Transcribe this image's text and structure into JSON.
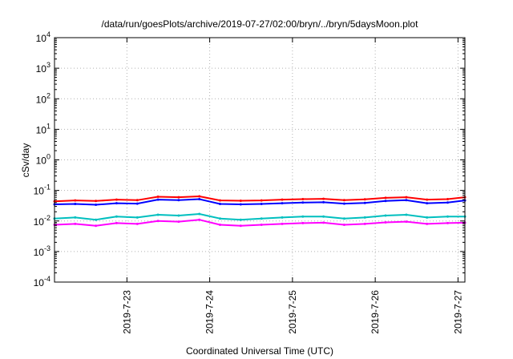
{
  "chart_data": {
    "type": "line",
    "title": "/data/run/goesPlots/archive/2019-07-27/02:00/bryn/../bryn/5daysMoon.plot",
    "xlabel": "Coordinated Universal Time (UTC)",
    "ylabel": "cSv/day",
    "yscale": "log",
    "ylim": [
      0.0001,
      10000
    ],
    "xlim": [
      "2019-07-22T03:00",
      "2019-07-27T02:00"
    ],
    "grid": true,
    "y_ticks": [
      {
        "base": "10",
        "exp": "-4",
        "value": 0.0001
      },
      {
        "base": "10",
        "exp": "-3",
        "value": 0.001
      },
      {
        "base": "10",
        "exp": "-2",
        "value": 0.01
      },
      {
        "base": "10",
        "exp": "-1",
        "value": 0.1
      },
      {
        "base": "10",
        "exp": "0",
        "value": 1
      },
      {
        "base": "10",
        "exp": "1",
        "value": 10
      },
      {
        "base": "10",
        "exp": "2",
        "value": 100
      },
      {
        "base": "10",
        "exp": "3",
        "value": 1000
      },
      {
        "base": "10",
        "exp": "4",
        "value": 10000
      }
    ],
    "x_ticks": [
      {
        "label": "2019-7-23",
        "value": "2019-07-23T00:00"
      },
      {
        "label": "2019-7-24",
        "value": "2019-07-24T00:00"
      },
      {
        "label": "2019-7-25",
        "value": "2019-07-25T00:00"
      },
      {
        "label": "2019-7-26",
        "value": "2019-07-26T00:00"
      },
      {
        "label": "2019-7-27",
        "value": "2019-07-27T00:00"
      }
    ],
    "series": [
      {
        "color": "#ff0000",
        "x": [
          "2019-07-22T03:00",
          "2019-07-22T09:00",
          "2019-07-22T15:00",
          "2019-07-22T21:00",
          "2019-07-23T03:00",
          "2019-07-23T09:00",
          "2019-07-23T15:00",
          "2019-07-23T21:00",
          "2019-07-24T03:00",
          "2019-07-24T09:00",
          "2019-07-24T15:00",
          "2019-07-24T21:00",
          "2019-07-25T03:00",
          "2019-07-25T09:00",
          "2019-07-25T15:00",
          "2019-07-25T21:00",
          "2019-07-26T03:00",
          "2019-07-26T09:00",
          "2019-07-26T15:00",
          "2019-07-26T21:00",
          "2019-07-27T02:00"
        ],
        "values": [
          0.044,
          0.047,
          0.045,
          0.05,
          0.048,
          0.062,
          0.06,
          0.064,
          0.047,
          0.046,
          0.047,
          0.05,
          0.052,
          0.053,
          0.048,
          0.051,
          0.057,
          0.06,
          0.05,
          0.052,
          0.06
        ]
      },
      {
        "color": "#0000ff",
        "x": [
          "2019-07-22T03:00",
          "2019-07-22T09:00",
          "2019-07-22T15:00",
          "2019-07-22T21:00",
          "2019-07-23T03:00",
          "2019-07-23T09:00",
          "2019-07-23T15:00",
          "2019-07-23T21:00",
          "2019-07-24T03:00",
          "2019-07-24T09:00",
          "2019-07-24T15:00",
          "2019-07-24T21:00",
          "2019-07-25T03:00",
          "2019-07-25T09:00",
          "2019-07-25T15:00",
          "2019-07-25T21:00",
          "2019-07-26T03:00",
          "2019-07-26T09:00",
          "2019-07-26T15:00",
          "2019-07-26T21:00",
          "2019-07-27T02:00"
        ],
        "values": [
          0.035,
          0.036,
          0.034,
          0.038,
          0.037,
          0.05,
          0.048,
          0.052,
          0.036,
          0.035,
          0.036,
          0.038,
          0.04,
          0.041,
          0.037,
          0.039,
          0.045,
          0.048,
          0.038,
          0.04,
          0.047
        ]
      },
      {
        "color": "#00bfbf",
        "x": [
          "2019-07-22T03:00",
          "2019-07-22T09:00",
          "2019-07-22T15:00",
          "2019-07-22T21:00",
          "2019-07-23T03:00",
          "2019-07-23T09:00",
          "2019-07-23T15:00",
          "2019-07-23T21:00",
          "2019-07-24T03:00",
          "2019-07-24T09:00",
          "2019-07-24T15:00",
          "2019-07-24T21:00",
          "2019-07-25T03:00",
          "2019-07-25T09:00",
          "2019-07-25T15:00",
          "2019-07-25T21:00",
          "2019-07-26T03:00",
          "2019-07-26T09:00",
          "2019-07-26T15:00",
          "2019-07-26T21:00",
          "2019-07-27T02:00"
        ],
        "values": [
          0.012,
          0.013,
          0.011,
          0.014,
          0.013,
          0.016,
          0.015,
          0.017,
          0.012,
          0.011,
          0.012,
          0.013,
          0.014,
          0.014,
          0.012,
          0.013,
          0.015,
          0.016,
          0.013,
          0.014,
          0.014
        ]
      },
      {
        "color": "#ff00ff",
        "x": [
          "2019-07-22T03:00",
          "2019-07-22T09:00",
          "2019-07-22T15:00",
          "2019-07-22T21:00",
          "2019-07-23T03:00",
          "2019-07-23T09:00",
          "2019-07-23T15:00",
          "2019-07-23T21:00",
          "2019-07-24T03:00",
          "2019-07-24T09:00",
          "2019-07-24T15:00",
          "2019-07-24T21:00",
          "2019-07-25T03:00",
          "2019-07-25T09:00",
          "2019-07-25T15:00",
          "2019-07-25T21:00",
          "2019-07-26T03:00",
          "2019-07-26T09:00",
          "2019-07-26T15:00",
          "2019-07-26T21:00",
          "2019-07-27T02:00"
        ],
        "values": [
          0.0075,
          0.008,
          0.007,
          0.0085,
          0.008,
          0.01,
          0.0095,
          0.011,
          0.0075,
          0.007,
          0.0075,
          0.008,
          0.0085,
          0.0088,
          0.0075,
          0.008,
          0.009,
          0.0095,
          0.008,
          0.0085,
          0.0088
        ]
      }
    ]
  }
}
